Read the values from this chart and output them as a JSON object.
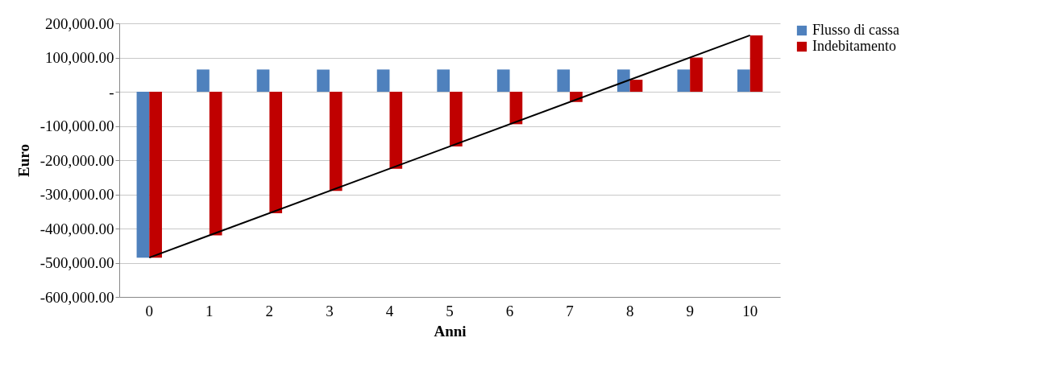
{
  "chart_data": {
    "type": "bar",
    "xlabel": "Anni",
    "ylabel": "Euro",
    "categories": [
      "0",
      "1",
      "2",
      "3",
      "4",
      "5",
      "6",
      "7",
      "8",
      "9",
      "10"
    ],
    "series": [
      {
        "name": "Flusso di cassa",
        "color": "#4f81bd",
        "values": [
          -485000,
          65000,
          65000,
          65000,
          65000,
          65000,
          65000,
          65000,
          65000,
          65000,
          65000
        ]
      },
      {
        "name": "Indebitamento",
        "color": "#c00000",
        "values": [
          -485000,
          -420000,
          -355000,
          -290000,
          -225000,
          -160000,
          -95000,
          -30000,
          35000,
          100000,
          165000
        ]
      },
      {
        "type": "line",
        "color": "#000000",
        "x": [
          "0",
          "10"
        ],
        "values": [
          -485000,
          165000
        ]
      }
    ],
    "ylim": [
      -600000,
      200000
    ],
    "yticks": [
      {
        "value": -600000,
        "label": "-600,000.00"
      },
      {
        "value": -500000,
        "label": "-500,000.00"
      },
      {
        "value": -400000,
        "label": "-400,000.00"
      },
      {
        "value": -300000,
        "label": "-300,000.00"
      },
      {
        "value": -200000,
        "label": "-200,000.00"
      },
      {
        "value": -100000,
        "label": "-100,000.00"
      },
      {
        "value": 0,
        "label": "-"
      },
      {
        "value": 100000,
        "label": "100,000.00"
      },
      {
        "value": 200000,
        "label": "200,000.00"
      }
    ],
    "grid": "y",
    "legend": "right"
  }
}
